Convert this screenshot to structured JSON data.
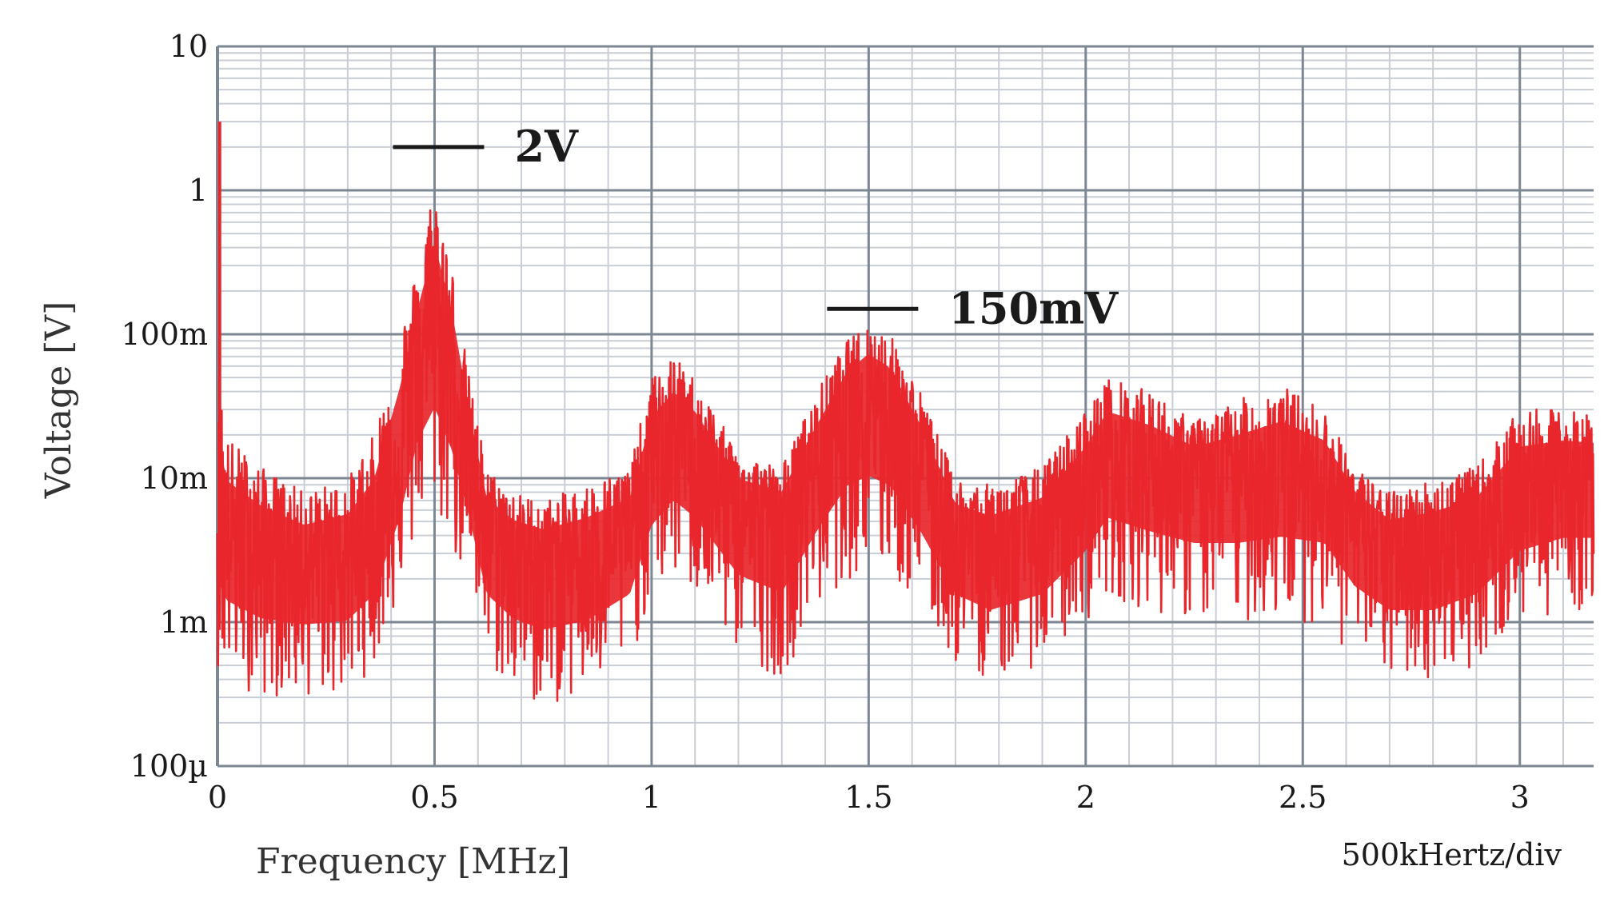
{
  "chart_data": {
    "type": "line",
    "xlabel": "Frequency [MHz]",
    "ylabel": "Voltage [V]",
    "x_ticks": [
      {
        "value": 0,
        "label": "0"
      },
      {
        "value": 0.5,
        "label": "0.5"
      },
      {
        "value": 1,
        "label": "1"
      },
      {
        "value": 1.5,
        "label": "1.5"
      },
      {
        "value": 2,
        "label": "2"
      },
      {
        "value": 2.5,
        "label": "2.5"
      },
      {
        "value": 3,
        "label": "3"
      }
    ],
    "y_ticks": [
      {
        "value": 0.0001,
        "label": "100µ"
      },
      {
        "value": 0.001,
        "label": "1m"
      },
      {
        "value": 0.01,
        "label": "10m"
      },
      {
        "value": 0.1,
        "label": "100m"
      },
      {
        "value": 1,
        "label": "1"
      },
      {
        "value": 10,
        "label": "10"
      }
    ],
    "xlim": [
      0,
      3.17
    ],
    "ylim": [
      0.0001,
      10
    ],
    "y_scale": "log",
    "grid": true,
    "division_label": "500kHertz/div",
    "series": [
      {
        "color": "#e8262b",
        "envelope": {
          "x": [
            0,
            0.02,
            0.1,
            0.2,
            0.3,
            0.36,
            0.42,
            0.46,
            0.5,
            0.54,
            0.58,
            0.62,
            0.68,
            0.75,
            0.85,
            0.95,
            1.0,
            1.05,
            1.1,
            1.2,
            1.3,
            1.38,
            1.45,
            1.5,
            1.55,
            1.62,
            1.7,
            1.78,
            1.9,
            2.0,
            2.05,
            2.15,
            2.25,
            2.35,
            2.45,
            2.55,
            2.62,
            2.7,
            2.8,
            2.9,
            3.0,
            3.1,
            3.17
          ],
          "top": [
            0.08,
            0.02,
            0.012,
            0.008,
            0.01,
            0.02,
            0.1,
            0.3,
            1.2,
            0.3,
            0.05,
            0.012,
            0.008,
            0.007,
            0.009,
            0.012,
            0.05,
            0.07,
            0.05,
            0.015,
            0.012,
            0.04,
            0.09,
            0.12,
            0.1,
            0.04,
            0.01,
            0.009,
            0.012,
            0.03,
            0.05,
            0.04,
            0.025,
            0.035,
            0.045,
            0.03,
            0.012,
            0.008,
            0.01,
            0.012,
            0.03,
            0.03,
            0.028
          ],
          "center": [
            0.006,
            0.004,
            0.003,
            0.0025,
            0.0028,
            0.004,
            0.015,
            0.06,
            0.12,
            0.06,
            0.015,
            0.004,
            0.003,
            0.0025,
            0.0028,
            0.004,
            0.012,
            0.02,
            0.015,
            0.006,
            0.005,
            0.012,
            0.03,
            0.04,
            0.03,
            0.012,
            0.004,
            0.003,
            0.004,
            0.008,
            0.015,
            0.012,
            0.01,
            0.01,
            0.012,
            0.01,
            0.005,
            0.003,
            0.003,
            0.004,
            0.008,
            0.01,
            0.01
          ],
          "bottom": [
            0.0005,
            0.0004,
            0.0003,
            0.0003,
            0.0003,
            0.0005,
            0.0015,
            0.004,
            0.006,
            0.003,
            0.0015,
            0.0005,
            0.0003,
            0.00025,
            0.0003,
            0.0005,
            0.0015,
            0.002,
            0.0015,
            0.0006,
            0.0004,
            0.0012,
            0.002,
            0.002,
            0.002,
            0.0012,
            0.0005,
            0.0004,
            0.0005,
            0.001,
            0.0015,
            0.0012,
            0.001,
            0.001,
            0.001,
            0.001,
            0.0005,
            0.0004,
            0.0004,
            0.0005,
            0.001,
            0.0012,
            0.0012
          ]
        }
      }
    ],
    "annotations": [
      {
        "x": 0.5,
        "y": 2.0,
        "label": "2V"
      },
      {
        "x": 1.5,
        "y": 0.15,
        "label": "150mV"
      }
    ]
  }
}
